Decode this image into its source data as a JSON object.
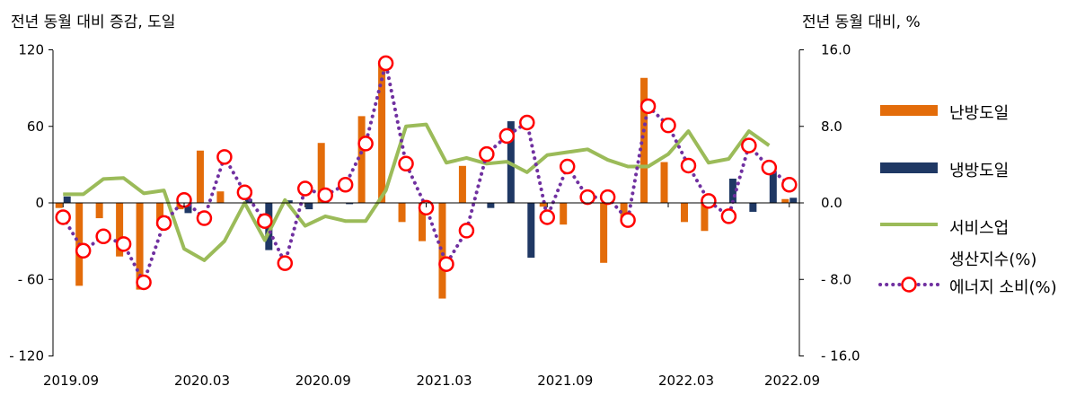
{
  "chart_data": {
    "type": "bar",
    "left_axis_title": "전년 동월 대비 증감, 도일",
    "right_axis_title": "전년 동월 대비, %",
    "left_ylim": [
      -120,
      120
    ],
    "right_ylim": [
      -16,
      16
    ],
    "left_ticks": [
      "120",
      "60",
      "0",
      "- 60",
      "- 120"
    ],
    "right_ticks": [
      "16.0",
      "8.0",
      "0.0",
      "- 8.0",
      "- 16.0"
    ],
    "x_tick_labels": [
      "2019.09",
      "2020.03",
      "2020.09",
      "2021.03",
      "2021.09",
      "2022.03",
      "2022.09"
    ],
    "categories": [
      "2019.09",
      "2019.10",
      "2019.11",
      "2019.12",
      "2020.01",
      "2020.02",
      "2020.03",
      "2020.04",
      "2020.05",
      "2020.06",
      "2020.07",
      "2020.08",
      "2020.09",
      "2020.10",
      "2020.11",
      "2020.12",
      "2021.01",
      "2021.02",
      "2021.03",
      "2021.04",
      "2021.05",
      "2021.06",
      "2021.07",
      "2021.08",
      "2021.09",
      "2021.10",
      "2021.11",
      "2021.12",
      "2022.01",
      "2022.02",
      "2022.03",
      "2022.04",
      "2022.05",
      "2022.06",
      "2022.07",
      "2022.08",
      "2022.09"
    ],
    "series": [
      {
        "name": "난방도일",
        "type": "bar",
        "axis": "left",
        "color": "#E36C0A",
        "values": [
          -4,
          -65,
          -12,
          -42,
          -68,
          -18,
          -5,
          41,
          9,
          0,
          0,
          0,
          0,
          47,
          0,
          68,
          110,
          -15,
          -30,
          -75,
          29,
          0,
          0,
          0,
          -3,
          -17,
          0,
          -47,
          -15,
          98,
          32,
          -15,
          -22,
          0,
          0,
          0,
          3
        ]
      },
      {
        "name": "냉방도일",
        "type": "bar",
        "axis": "left",
        "color": "#1F3864",
        "values": [
          5,
          0,
          0,
          0,
          0,
          0,
          -8,
          0,
          0,
          3,
          -37,
          2,
          -5,
          0,
          -1,
          0,
          0,
          0,
          0,
          0,
          0,
          -4,
          64,
          -43,
          0,
          0,
          0,
          0,
          0,
          0,
          0,
          0,
          0,
          19,
          -7,
          25,
          4
        ]
      },
      {
        "name": "서비스업 생산지수(%)",
        "type": "line",
        "axis": "right",
        "color": "#9BBB59",
        "values": [
          0.9,
          0.9,
          2.5,
          2.6,
          1.0,
          1.3,
          -4.8,
          -6.0,
          -4.0,
          0.0,
          -3.9,
          0.3,
          -2.4,
          -1.4,
          -1.9,
          -1.9,
          1.3,
          8.0,
          8.2,
          4.2,
          4.7,
          4.1,
          4.3,
          3.2,
          5.0,
          5.3,
          5.6,
          4.5,
          3.8,
          3.8,
          5.1,
          7.5,
          4.2,
          4.6,
          7.5,
          6.0,
          null
        ]
      },
      {
        "name": "에너지 소비(%)",
        "type": "line-marker",
        "axis": "right",
        "color": "#7030A0",
        "marker_color": "#FF0000",
        "values": [
          -1.5,
          -5.0,
          -3.5,
          -4.3,
          -8.3,
          -2.1,
          0.3,
          -1.6,
          4.8,
          1.1,
          -1.9,
          -6.3,
          1.5,
          0.8,
          1.9,
          6.2,
          14.6,
          4.1,
          -0.5,
          -6.4,
          -2.9,
          5.1,
          7.0,
          8.4,
          -1.5,
          3.8,
          0.6,
          0.6,
          -1.8,
          10.1,
          8.1,
          3.9,
          0.2,
          -1.4,
          6.0,
          3.7,
          1.9
        ]
      }
    ],
    "legend": {
      "position": "right",
      "items": [
        "난방도일",
        "냉방도일",
        "서비스업",
        "생산지수(%)",
        "에너지 소비(%)"
      ]
    },
    "grid": false
  }
}
